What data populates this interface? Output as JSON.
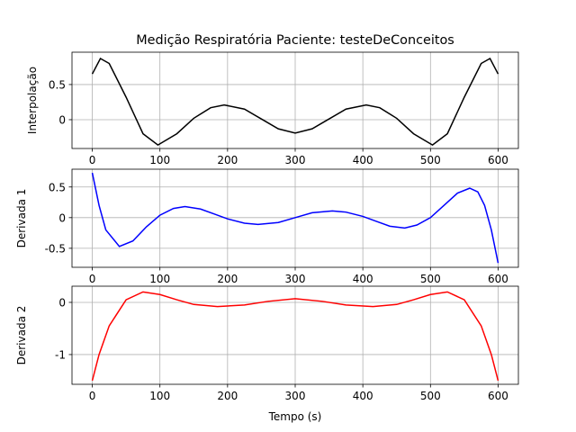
{
  "chart_data": [
    {
      "type": "line",
      "title": "Medição Respiratória Paciente: testeDeConceitos",
      "ylabel": "Interpolação",
      "color": "#000000",
      "x": [
        0,
        12,
        25,
        50,
        75,
        97,
        125,
        150,
        175,
        195,
        225,
        250,
        275,
        300,
        325,
        350,
        375,
        405,
        425,
        450,
        475,
        503,
        525,
        550,
        575,
        588,
        600
      ],
      "values": [
        0.65,
        0.87,
        0.8,
        0.32,
        -0.2,
        -0.36,
        -0.2,
        0.02,
        0.17,
        0.21,
        0.15,
        0.01,
        -0.13,
        -0.19,
        -0.13,
        0.01,
        0.15,
        0.21,
        0.17,
        0.02,
        -0.2,
        -0.36,
        -0.2,
        0.32,
        0.8,
        0.87,
        0.65
      ],
      "xlim": [
        -30,
        630
      ],
      "xticks": [
        0,
        100,
        200,
        300,
        400,
        500,
        600
      ],
      "ylim": [
        -0.41,
        0.96
      ],
      "yticks": [
        0.0,
        0.5
      ],
      "grid": true
    },
    {
      "type": "line",
      "ylabel": "Derivada 1",
      "color": "#0000ff",
      "x": [
        0,
        10,
        20,
        40,
        60,
        80,
        100,
        120,
        137,
        160,
        180,
        200,
        225,
        245,
        275,
        300,
        325,
        355,
        375,
        400,
        420,
        440,
        462,
        480,
        500,
        520,
        540,
        558,
        570,
        580,
        590,
        600
      ],
      "values": [
        0.73,
        0.2,
        -0.2,
        -0.47,
        -0.38,
        -0.15,
        0.04,
        0.15,
        0.18,
        0.14,
        0.06,
        -0.02,
        -0.09,
        -0.11,
        -0.08,
        0.0,
        0.08,
        0.11,
        0.09,
        0.02,
        -0.06,
        -0.14,
        -0.17,
        -0.12,
        0.0,
        0.2,
        0.4,
        0.48,
        0.42,
        0.2,
        -0.2,
        -0.74
      ],
      "xlim": [
        -30,
        630
      ],
      "xticks": [
        0,
        100,
        200,
        300,
        400,
        500,
        600
      ],
      "ylim": [
        -0.81,
        0.79
      ],
      "yticks": [
        -0.5,
        0.0,
        0.5
      ],
      "grid": true
    },
    {
      "type": "line",
      "ylabel": "Derivada 2",
      "xlabel": "Tempo (s)",
      "color": "#ff0000",
      "x": [
        0,
        10,
        25,
        50,
        75,
        100,
        125,
        150,
        185,
        225,
        260,
        300,
        340,
        375,
        415,
        450,
        475,
        500,
        525,
        550,
        575,
        590,
        600
      ],
      "values": [
        -1.5,
        -1.0,
        -0.45,
        0.05,
        0.2,
        0.15,
        0.05,
        -0.04,
        -0.08,
        -0.05,
        0.02,
        0.07,
        0.02,
        -0.05,
        -0.08,
        -0.04,
        0.05,
        0.15,
        0.2,
        0.05,
        -0.45,
        -1.0,
        -1.5
      ],
      "xlim": [
        -30,
        630
      ],
      "xticks": [
        0,
        100,
        200,
        300,
        400,
        500,
        600
      ],
      "ylim": [
        -1.57,
        0.31
      ],
      "yticks": [
        -1,
        0
      ],
      "grid": true
    }
  ]
}
